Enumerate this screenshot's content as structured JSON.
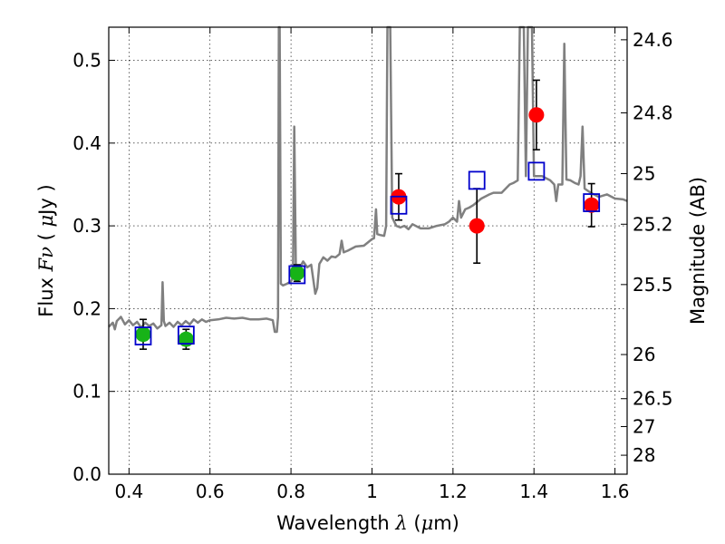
{
  "chart_data": {
    "type": "scatter",
    "title": "",
    "xlabel": "Wavelength  λ (μm)",
    "ylabel": "Flux  Fν  ( μJy )",
    "ylabel_right": "Magnitude (AB)",
    "xlim": [
      0.35,
      1.63
    ],
    "ylim": [
      0.0,
      0.54
    ],
    "grid": true,
    "x_ticks": [
      0.4,
      0.6,
      0.8,
      1.0,
      1.2,
      1.4,
      1.6
    ],
    "x_tick_labels": [
      "0.4",
      "0.6",
      "0.8",
      "1",
      "1.2",
      "1.4",
      "1.6"
    ],
    "y_ticks": [
      0.0,
      0.1,
      0.2,
      0.3,
      0.4,
      0.5
    ],
    "y_tick_labels": [
      "0.0",
      "0.1",
      "0.2",
      "0.3",
      "0.4",
      "0.5"
    ],
    "right_ticks": [
      {
        "label": "24.6",
        "mag": 24.6
      },
      {
        "label": "24.8",
        "mag": 24.8
      },
      {
        "label": "25",
        "mag": 25.0
      },
      {
        "label": "25.2",
        "mag": 25.2
      },
      {
        "label": "25.5",
        "mag": 25.5
      },
      {
        "label": "26",
        "mag": 26.0
      },
      {
        "label": "26.5",
        "mag": 26.5
      },
      {
        "label": "27",
        "mag": 27.0
      },
      {
        "label": "28",
        "mag": 28.0
      }
    ],
    "colors": {
      "model": "#808080",
      "green": "#17b317",
      "red": "#ff0000",
      "box": "#0000cc",
      "errorbar": "#000000"
    },
    "model_spectrum": [
      [
        0.35,
        0.178
      ],
      [
        0.36,
        0.183
      ],
      [
        0.365,
        0.175
      ],
      [
        0.37,
        0.185
      ],
      [
        0.38,
        0.19
      ],
      [
        0.39,
        0.181
      ],
      [
        0.4,
        0.186
      ],
      [
        0.41,
        0.18
      ],
      [
        0.42,
        0.184
      ],
      [
        0.43,
        0.177
      ],
      [
        0.44,
        0.183
      ],
      [
        0.45,
        0.179
      ],
      [
        0.46,
        0.182
      ],
      [
        0.47,
        0.176
      ],
      [
        0.48,
        0.18
      ],
      [
        0.483,
        0.232
      ],
      [
        0.486,
        0.185
      ],
      [
        0.49,
        0.179
      ],
      [
        0.5,
        0.183
      ],
      [
        0.51,
        0.178
      ],
      [
        0.52,
        0.184
      ],
      [
        0.53,
        0.18
      ],
      [
        0.54,
        0.185
      ],
      [
        0.55,
        0.181
      ],
      [
        0.56,
        0.187
      ],
      [
        0.57,
        0.183
      ],
      [
        0.58,
        0.187
      ],
      [
        0.59,
        0.184
      ],
      [
        0.6,
        0.186
      ],
      [
        0.62,
        0.187
      ],
      [
        0.64,
        0.189
      ],
      [
        0.66,
        0.188
      ],
      [
        0.68,
        0.189
      ],
      [
        0.7,
        0.187
      ],
      [
        0.72,
        0.187
      ],
      [
        0.74,
        0.188
      ],
      [
        0.755,
        0.186
      ],
      [
        0.76,
        0.172
      ],
      [
        0.765,
        0.172
      ],
      [
        0.768,
        0.19
      ],
      [
        0.77,
        0.54
      ],
      [
        0.772,
        0.54
      ],
      [
        0.775,
        0.23
      ],
      [
        0.78,
        0.228
      ],
      [
        0.79,
        0.23
      ],
      [
        0.8,
        0.233
      ],
      [
        0.805,
        0.238
      ],
      [
        0.808,
        0.42
      ],
      [
        0.812,
        0.245
      ],
      [
        0.82,
        0.248
      ],
      [
        0.83,
        0.257
      ],
      [
        0.84,
        0.25
      ],
      [
        0.85,
        0.253
      ],
      [
        0.86,
        0.218
      ],
      [
        0.865,
        0.225
      ],
      [
        0.87,
        0.254
      ],
      [
        0.88,
        0.262
      ],
      [
        0.89,
        0.258
      ],
      [
        0.9,
        0.263
      ],
      [
        0.91,
        0.262
      ],
      [
        0.92,
        0.266
      ],
      [
        0.925,
        0.282
      ],
      [
        0.93,
        0.268
      ],
      [
        0.94,
        0.27
      ],
      [
        0.96,
        0.275
      ],
      [
        0.98,
        0.276
      ],
      [
        0.99,
        0.28
      ],
      [
        1.0,
        0.284
      ],
      [
        1.005,
        0.285
      ],
      [
        1.01,
        0.32
      ],
      [
        1.013,
        0.29
      ],
      [
        1.02,
        0.289
      ],
      [
        1.03,
        0.288
      ],
      [
        1.035,
        0.3
      ],
      [
        1.038,
        0.54
      ],
      [
        1.045,
        0.54
      ],
      [
        1.05,
        0.31
      ],
      [
        1.06,
        0.3
      ],
      [
        1.07,
        0.298
      ],
      [
        1.08,
        0.3
      ],
      [
        1.09,
        0.296
      ],
      [
        1.1,
        0.302
      ],
      [
        1.12,
        0.297
      ],
      [
        1.14,
        0.297
      ],
      [
        1.16,
        0.3
      ],
      [
        1.18,
        0.302
      ],
      [
        1.19,
        0.305
      ],
      [
        1.2,
        0.31
      ],
      [
        1.21,
        0.305
      ],
      [
        1.215,
        0.33
      ],
      [
        1.22,
        0.31
      ],
      [
        1.23,
        0.32
      ],
      [
        1.24,
        0.322
      ],
      [
        1.25,
        0.325
      ],
      [
        1.27,
        0.333
      ],
      [
        1.29,
        0.338
      ],
      [
        1.3,
        0.34
      ],
      [
        1.32,
        0.34
      ],
      [
        1.34,
        0.35
      ],
      [
        1.35,
        0.352
      ],
      [
        1.36,
        0.355
      ],
      [
        1.365,
        0.54
      ],
      [
        1.375,
        0.54
      ],
      [
        1.38,
        0.36
      ],
      [
        1.385,
        0.54
      ],
      [
        1.395,
        0.54
      ],
      [
        1.4,
        0.36
      ],
      [
        1.42,
        0.36
      ],
      [
        1.44,
        0.355
      ],
      [
        1.45,
        0.35
      ],
      [
        1.455,
        0.33
      ],
      [
        1.46,
        0.35
      ],
      [
        1.47,
        0.35
      ],
      [
        1.475,
        0.52
      ],
      [
        1.48,
        0.356
      ],
      [
        1.49,
        0.355
      ],
      [
        1.5,
        0.352
      ],
      [
        1.51,
        0.35
      ],
      [
        1.515,
        0.36
      ],
      [
        1.52,
        0.42
      ],
      [
        1.525,
        0.345
      ],
      [
        1.54,
        0.34
      ],
      [
        1.56,
        0.335
      ],
      [
        1.58,
        0.338
      ],
      [
        1.6,
        0.333
      ],
      [
        1.62,
        0.332
      ],
      [
        1.63,
        0.33
      ]
    ],
    "series": [
      {
        "marker": "circle",
        "color": "green",
        "points": [
          {
            "x": 0.435,
            "y": 0.169,
            "err": 0.018
          },
          {
            "x": 0.541,
            "y": 0.163,
            "err": 0.012
          },
          {
            "x": 0.815,
            "y": 0.243,
            "err": 0.01
          }
        ]
      },
      {
        "marker": "circle",
        "color": "red",
        "points": [
          {
            "x": 1.066,
            "y": 0.335,
            "err": 0.028
          },
          {
            "x": 1.259,
            "y": 0.3,
            "err": 0.045
          },
          {
            "x": 1.406,
            "y": 0.434,
            "err": 0.042
          },
          {
            "x": 1.542,
            "y": 0.325,
            "err": 0.026
          }
        ]
      },
      {
        "marker": "open-square",
        "color": "box",
        "points": [
          {
            "x": 0.435,
            "y": 0.167
          },
          {
            "x": 0.541,
            "y": 0.168
          },
          {
            "x": 0.815,
            "y": 0.241
          },
          {
            "x": 1.066,
            "y": 0.325
          },
          {
            "x": 1.259,
            "y": 0.355
          },
          {
            "x": 1.406,
            "y": 0.366
          },
          {
            "x": 1.542,
            "y": 0.328
          }
        ]
      }
    ]
  }
}
